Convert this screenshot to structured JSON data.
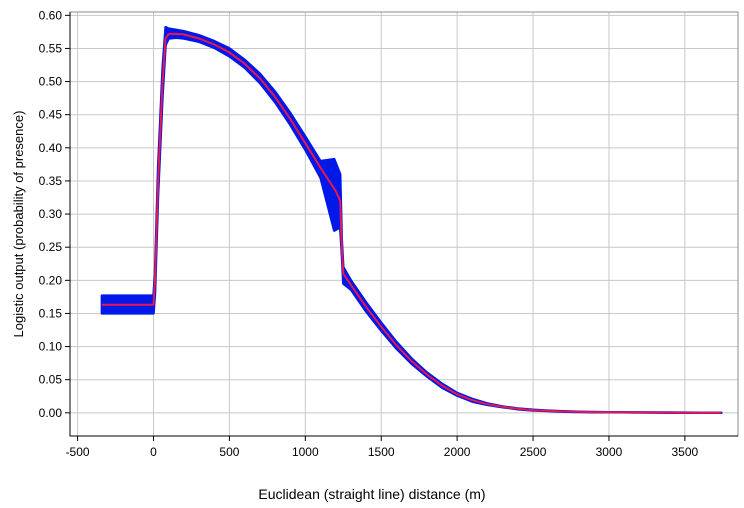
{
  "chart_data": {
    "type": "line",
    "xlabel": "Euclidean (straight line) distance (m)",
    "ylabel": "Logistic output (probability of presence)",
    "xlim": [
      -550,
      3850
    ],
    "ylim": [
      -0.035,
      0.605
    ],
    "x_ticks": [
      -500,
      0,
      500,
      1000,
      1500,
      2000,
      2500,
      3000,
      3500
    ],
    "x_tick_labels": [
      "-500",
      "0",
      "500",
      "1000",
      "1500",
      "2000",
      "2500",
      "3000",
      "3500"
    ],
    "y_ticks": [
      0.0,
      0.05,
      0.1,
      0.15,
      0.2,
      0.25,
      0.3,
      0.35,
      0.4,
      0.45,
      0.5,
      0.55,
      0.6
    ],
    "y_tick_labels": [
      "0.00",
      "0.05",
      "0.10",
      "0.15",
      "0.20",
      "0.25",
      "0.30",
      "0.35",
      "0.40",
      "0.45",
      "0.50",
      "0.55",
      "0.60"
    ],
    "grid": true,
    "colors": {
      "mean": "#e8174e",
      "band": "#0018e8",
      "grid": "#c8c8c8",
      "axis": "#000000"
    },
    "series": [
      {
        "role": "mean",
        "x": [
          -340,
          0,
          10,
          30,
          60,
          80,
          100,
          150,
          200,
          300,
          400,
          500,
          600,
          700,
          800,
          900,
          1000,
          1100,
          1200,
          1230,
          1240,
          1250,
          1300,
          1400,
          1500,
          1600,
          1700,
          1800,
          1900,
          2000,
          2100,
          2200,
          2300,
          2400,
          2500,
          2600,
          2700,
          2800,
          2900,
          3000,
          3200,
          3400,
          3600,
          3740
        ],
        "y": [
          0.163,
          0.163,
          0.2,
          0.35,
          0.5,
          0.565,
          0.572,
          0.572,
          0.571,
          0.565,
          0.556,
          0.544,
          0.527,
          0.505,
          0.477,
          0.444,
          0.407,
          0.37,
          0.335,
          0.32,
          0.25,
          0.21,
          0.193,
          0.16,
          0.13,
          0.102,
          0.078,
          0.058,
          0.041,
          0.028,
          0.019,
          0.013,
          0.009,
          0.006,
          0.004,
          0.003,
          0.002,
          0.0015,
          0.001,
          0.0008,
          0.0005,
          0.0003,
          0.0002,
          0.0001
        ]
      },
      {
        "role": "band-upper",
        "x": [
          -340,
          0,
          10,
          30,
          60,
          80,
          100,
          150,
          200,
          300,
          400,
          500,
          600,
          700,
          800,
          900,
          1000,
          1100,
          1190,
          1230,
          1240,
          1250,
          1300,
          1400,
          1500,
          1600,
          1700,
          1800,
          1900,
          2000,
          2100,
          2200,
          2300,
          2400,
          2500,
          2600,
          2700,
          2800,
          2900,
          3000,
          3200,
          3400,
          3600,
          3740
        ],
        "y": [
          0.177,
          0.177,
          0.21,
          0.37,
          0.52,
          0.582,
          0.58,
          0.578,
          0.576,
          0.57,
          0.561,
          0.55,
          0.533,
          0.512,
          0.485,
          0.453,
          0.417,
          0.38,
          0.383,
          0.36,
          0.26,
          0.22,
          0.2,
          0.167,
          0.136,
          0.107,
          0.082,
          0.061,
          0.044,
          0.03,
          0.021,
          0.014,
          0.0095,
          0.0065,
          0.0045,
          0.0033,
          0.0023,
          0.0017,
          0.0012,
          0.0009,
          0.0006,
          0.0004,
          0.0002,
          0.0001
        ]
      },
      {
        "role": "band-lower",
        "x": [
          -340,
          0,
          10,
          30,
          60,
          80,
          100,
          150,
          200,
          300,
          400,
          500,
          600,
          700,
          800,
          900,
          1000,
          1100,
          1190,
          1230,
          1240,
          1250,
          1300,
          1400,
          1500,
          1600,
          1700,
          1800,
          1900,
          2000,
          2100,
          2200,
          2300,
          2400,
          2500,
          2600,
          2700,
          2800,
          2900,
          3000,
          3200,
          3400,
          3600,
          3740
        ],
        "y": [
          0.15,
          0.15,
          0.18,
          0.33,
          0.48,
          0.555,
          0.565,
          0.566,
          0.565,
          0.56,
          0.551,
          0.538,
          0.521,
          0.498,
          0.469,
          0.435,
          0.397,
          0.355,
          0.275,
          0.28,
          0.24,
          0.195,
          0.186,
          0.153,
          0.124,
          0.097,
          0.074,
          0.055,
          0.038,
          0.026,
          0.017,
          0.012,
          0.0085,
          0.0055,
          0.0035,
          0.0027,
          0.0017,
          0.0013,
          0.0008,
          0.0007,
          0.0004,
          0.0002,
          0.0001,
          0.0
        ]
      }
    ]
  }
}
